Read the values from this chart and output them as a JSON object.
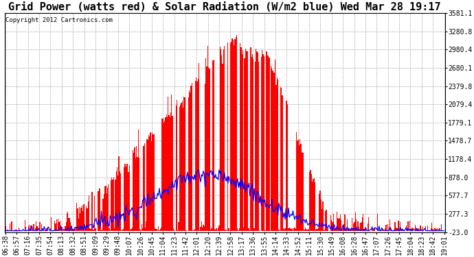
{
  "title": "Grid Power (watts red) & Solar Radiation (W/m2 blue) Wed Mar 28 19:17",
  "copyright_text": "Copyright 2012 Cartronics.com",
  "y_min": -23.0,
  "y_max": 3581.1,
  "y_ticks": [
    3581.1,
    3280.8,
    2980.4,
    2680.1,
    2379.8,
    2079.4,
    1779.1,
    1478.7,
    1178.4,
    878.0,
    577.7,
    277.3,
    -23.0
  ],
  "x_labels": [
    "06:38",
    "06:57",
    "07:16",
    "07:35",
    "07:54",
    "08:13",
    "08:32",
    "08:51",
    "09:09",
    "09:29",
    "09:48",
    "10:07",
    "10:26",
    "10:45",
    "11:04",
    "11:23",
    "11:42",
    "12:01",
    "12:20",
    "12:39",
    "12:58",
    "13:17",
    "13:36",
    "13:55",
    "14:14",
    "14:33",
    "14:52",
    "15:11",
    "15:30",
    "15:49",
    "16:08",
    "16:28",
    "16:47",
    "17:07",
    "17:26",
    "17:45",
    "18:04",
    "18:23",
    "18:42",
    "19:01"
  ],
  "background_color": "#ffffff",
  "plot_bg_color": "#ffffff",
  "grid_color": "#aaaaaa",
  "red_color": "#ff0000",
  "blue_color": "#0000ff",
  "title_fontsize": 11,
  "tick_fontsize": 7,
  "copyright_fontsize": 6.5
}
